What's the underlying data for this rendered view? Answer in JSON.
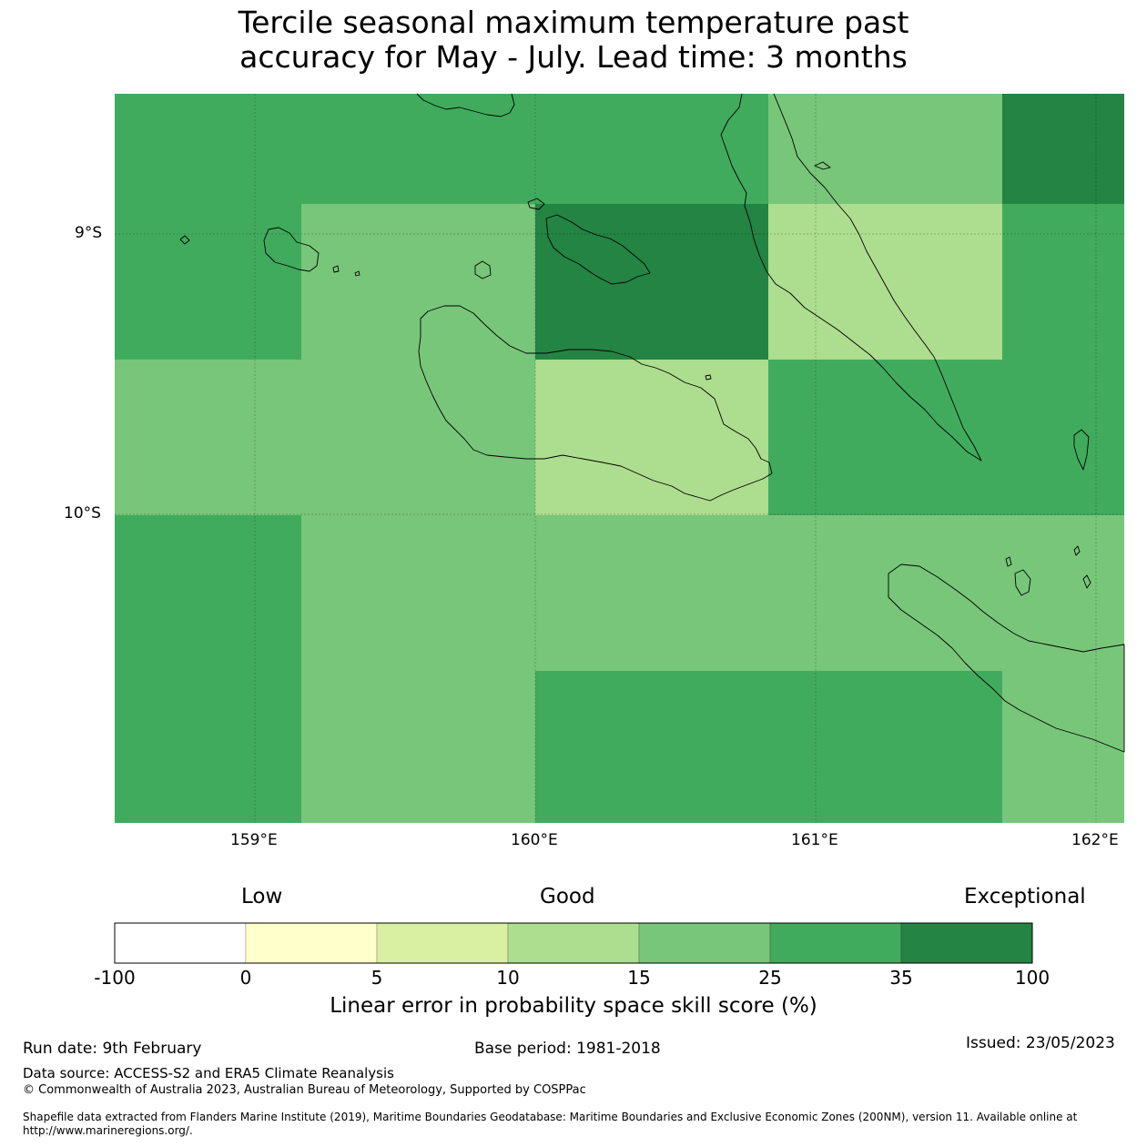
{
  "title": {
    "line1": "Tercile seasonal maximum temperature past",
    "line2": "accuracy for May - July. Lead time: 3 months"
  },
  "colors": {
    "c_neg": "#ffffff",
    "c0_5": "#ffffcc",
    "c5_10": "#d9f0a3",
    "c10_15": "#addd8e",
    "c15_25": "#78c679",
    "c25_35": "#41ab5d",
    "c35_100": "#238443",
    "coast": "#000000"
  },
  "map": {
    "lat_labels": [
      "9°S",
      "10°S"
    ],
    "lon_labels": [
      "159°E",
      "160°E",
      "161°E",
      "162°E"
    ],
    "cells": [
      [
        "c25_35",
        "c25_35",
        "c25_35",
        "c15_25",
        "c35_100"
      ],
      [
        "c25_35",
        "c15_25",
        "c35_100",
        "c10_15",
        "c25_35"
      ],
      [
        "c15_25",
        "c15_25",
        "c10_15",
        "c25_35",
        "c25_35"
      ],
      [
        "c25_35",
        "c15_25",
        "c15_25",
        "c15_25",
        "c15_25"
      ],
      [
        "c25_35",
        "c15_25",
        "c25_35",
        "c25_35",
        "c15_25"
      ]
    ]
  },
  "colorbar": {
    "categories": [
      "Low",
      "Good",
      "Exceptional"
    ],
    "ticks": [
      "-100",
      "0",
      "5",
      "10",
      "15",
      "25",
      "35",
      "100"
    ],
    "title": "Linear error in probability space skill score (%)"
  },
  "footer": {
    "run_date": "Run date: 9th February",
    "base_period": "Base period: 1981-2018",
    "issued": "Issued: 23/05/2023",
    "data_source": "Data source: ACCESS-S2 and ERA5 Climate Reanalysis",
    "copyright": "© Commonwealth of Australia 2023, Australian Bureau of Meteorology, Supported by COSPPac",
    "shapefile": "Shapefile data extracted from Flanders Marine Institute (2019), Maritime Boundaries Geodatabase: Maritime Boundaries and Exclusive Economic Zones (200NM), version 11. Available online at http://www.marineregions.org/."
  }
}
